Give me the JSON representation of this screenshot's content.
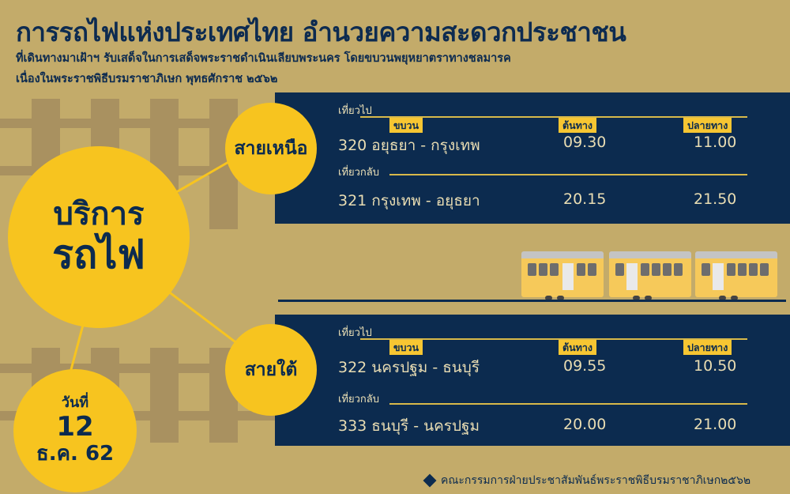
{
  "header": {
    "title": "การรถไฟแห่งประเทศไทย อำนวยความสะดวกประชาชน",
    "subtitle_1": "ที่เดินทางมาเฝ้าฯ รับเสด็จในการเสด็จพระราชดำเนินเลียบพระนคร โดยขบวนพยุหยาตราทางชลมารค",
    "subtitle_2": "เนื่องในพระราชพิธีบรมราชาภิเษก พุทธศักราช ๒๕๖๒"
  },
  "main_circle": {
    "line1": "บริการ",
    "line2": "รถไฟ"
  },
  "date_circle": {
    "label": "วันที่",
    "day": "12",
    "month_year": "ธ.ค. 62"
  },
  "columns": {
    "train": "ขบวน",
    "origin": "ต้นทาง",
    "destination": "ปลายทาง"
  },
  "routes": [
    {
      "name": "สายเหนือ",
      "outbound_label": "เที่ยวไป",
      "return_label": "เที่ยวกลับ",
      "outbound": {
        "train": "320 อยุธยา - กรุงเทพ",
        "depart": "09.30",
        "arrive": "11.00"
      },
      "return": {
        "train": "321 กรุงเทพ - อยุธยา",
        "depart": "20.15",
        "arrive": "21.50"
      }
    },
    {
      "name": "สายใต้",
      "outbound_label": "เที่ยวไป",
      "return_label": "เที่ยวกลับ",
      "outbound": {
        "train": "322 นครปฐม - ธนบุรี",
        "depart": "09.55",
        "arrive": "10.50"
      },
      "return": {
        "train": "333 ธนบุรี - นครปฐม",
        "depart": "20.00",
        "arrive": "21.00"
      }
    }
  ],
  "footer": {
    "credit": "คณะกรรมการฝ่ายประชาสัมพันธ์พระราชพิธีบรมราชาภิเษก๒๕๖๒"
  },
  "colors": {
    "background": "#c3ab6a",
    "navy": "#0c2b4f",
    "yellow": "#f7c41f"
  }
}
